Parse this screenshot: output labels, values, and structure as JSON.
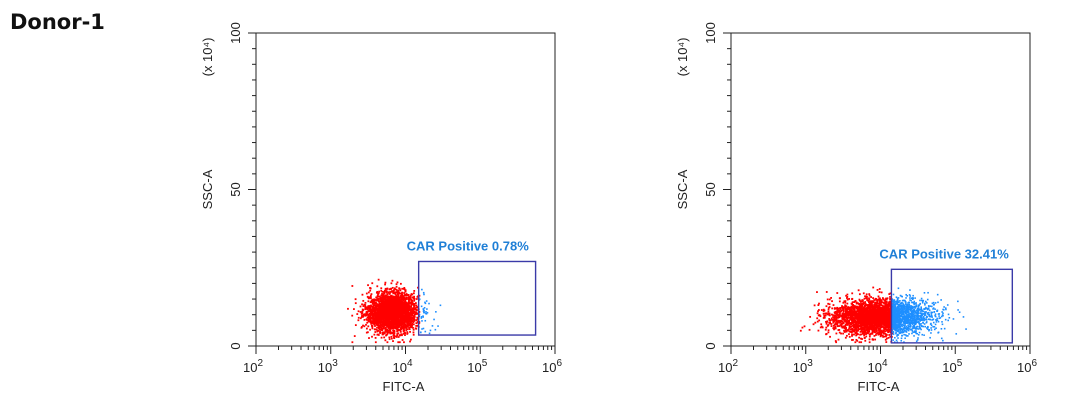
{
  "sample_title": "Donor-1",
  "colors": {
    "negative": "#ff0000",
    "positive": "#1e8fff",
    "gate": "#3a3aa8",
    "axis": "#222222"
  },
  "chart_data": [
    {
      "type": "scatter",
      "xlabel": "FITC-A",
      "ylabel": "SSC-A",
      "yscale_label": "(x 10⁴)",
      "xscale": "log",
      "xlim": [
        100,
        1000000
      ],
      "ylim": [
        0,
        100
      ],
      "x_ticks": [
        {
          "base": "10",
          "exp": "2"
        },
        {
          "base": "10",
          "exp": "3"
        },
        {
          "base": "10",
          "exp": "4"
        },
        {
          "base": "10",
          "exp": "5"
        },
        {
          "base": "10",
          "exp": "6"
        }
      ],
      "y_ticks": [
        "0",
        "50",
        "100"
      ],
      "population": {
        "center_x": 6500,
        "center_y": 11,
        "spread_logx": 0.17,
        "spread_y": 3.2,
        "count": 2800,
        "positive_fraction": 0.0078
      },
      "gate": {
        "label": "CAR Positive 0.78%",
        "x_min": 15000,
        "x_max": 550000,
        "y_min": 3.5,
        "y_max": 27
      }
    },
    {
      "type": "scatter",
      "xlabel": "FITC-A",
      "ylabel": "SSC-A",
      "yscale_label": "(x 10⁴)",
      "xscale": "log",
      "xlim": [
        100,
        1000000
      ],
      "ylim": [
        0,
        100
      ],
      "x_ticks": [
        {
          "base": "10",
          "exp": "2"
        },
        {
          "base": "10",
          "exp": "3"
        },
        {
          "base": "10",
          "exp": "4"
        },
        {
          "base": "10",
          "exp": "5"
        },
        {
          "base": "10",
          "exp": "6"
        }
      ],
      "y_ticks": [
        "0",
        "50",
        "100"
      ],
      "population": {
        "center_x": 9500,
        "center_y": 9.5,
        "spread_logx": 0.32,
        "spread_y": 2.8,
        "count": 3600,
        "positive_fraction": 0.3241
      },
      "gate": {
        "label": "CAR Positive 32.41%",
        "x_min": 14000,
        "x_max": 580000,
        "y_min": 1,
        "y_max": 24.5
      }
    }
  ]
}
